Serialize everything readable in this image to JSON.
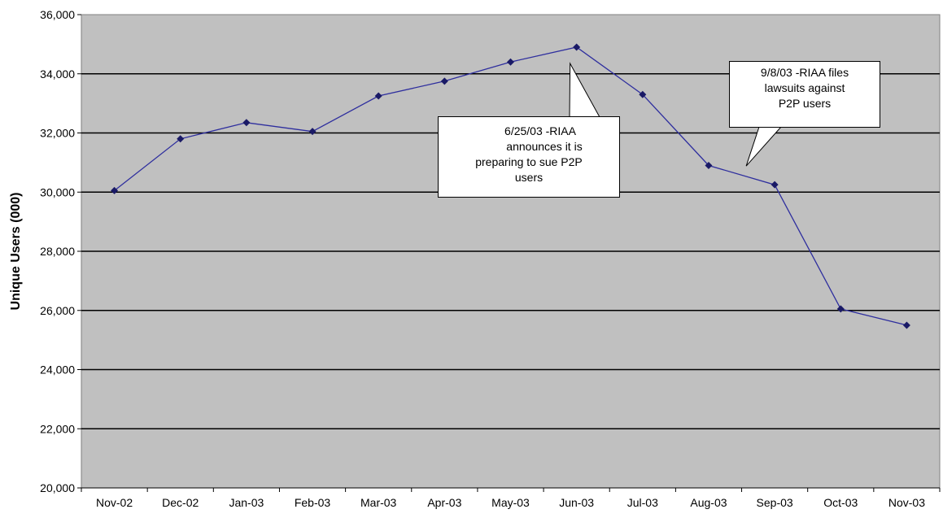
{
  "chart_data": {
    "type": "line",
    "categories": [
      "Nov-02",
      "Dec-02",
      "Jan-03",
      "Feb-03",
      "Mar-03",
      "Apr-03",
      "May-03",
      "Jun-03",
      "Jul-03",
      "Aug-03",
      "Sep-03",
      "Oct-03",
      "Nov-03"
    ],
    "series": [
      {
        "values": [
          30050,
          31800,
          32350,
          32050,
          33250,
          33750,
          34400,
          34900,
          33300,
          30900,
          30250,
          26050,
          25500
        ]
      }
    ],
    "xlabel": "",
    "ylabel": "Unique Users (000)",
    "ylim": [
      20000,
      36000
    ],
    "yticks": [
      20000,
      22000,
      24000,
      26000,
      28000,
      30000,
      32000,
      34000,
      36000
    ],
    "ytick_labels": [
      "20,000",
      "22,000",
      "24,000",
      "26,000",
      "28,000",
      "30,000",
      "32,000",
      "34,000",
      "36,000"
    ],
    "grid": true,
    "colors": {
      "plot_bg": "#c0c0c0",
      "line": "#2e2e9e",
      "marker": "#1a1a66",
      "grid": "#000000"
    },
    "annotations": [
      {
        "lines": [
          "6/25/03 -RIAA",
          "announces it is",
          "preparing to sue P2P",
          "users"
        ],
        "category": "Jun-03",
        "value": 34900
      },
      {
        "lines": [
          "9/8/03 -RIAA files",
          "lawsuits against",
          "P2P users"
        ],
        "category": "Sep-03",
        "value": 30250
      }
    ]
  }
}
